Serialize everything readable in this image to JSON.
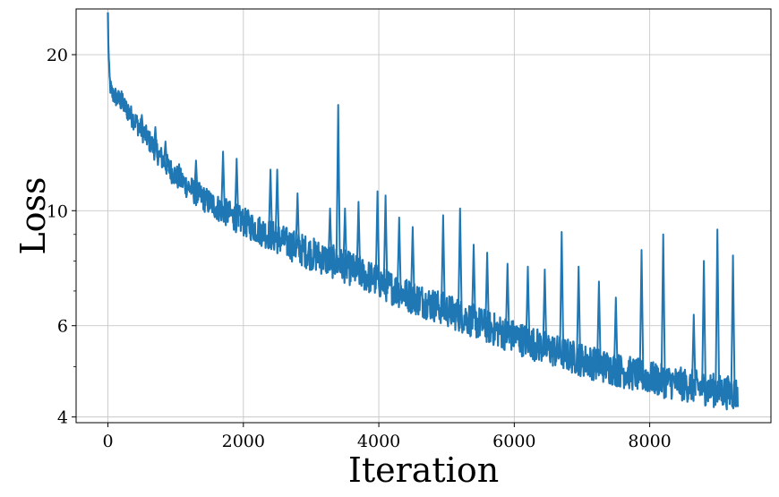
{
  "chart_data": {
    "type": "line",
    "title": "",
    "xlabel": "Iteration",
    "ylabel": "Loss",
    "xlim": [
      -470,
      9790
    ],
    "ylim": [
      3.9,
      24.5
    ],
    "yscale": "log",
    "grid": true,
    "x_ticks": [
      0,
      2000,
      4000,
      6000,
      8000
    ],
    "x_tick_labels": [
      "0",
      "2000",
      "4000",
      "6000",
      "8000"
    ],
    "y_ticks": [
      4,
      6,
      10,
      20
    ],
    "y_tick_labels": [
      "4",
      "6",
      "10",
      "20"
    ],
    "y_minor_ticks": [
      5,
      7,
      8,
      9
    ],
    "series": [
      {
        "color": "#1f77b4",
        "x": [
          0,
          10,
          20,
          40,
          60,
          100,
          150,
          200,
          300,
          400,
          500,
          600,
          700,
          800,
          900,
          1000,
          1200,
          1400,
          1600,
          1800,
          2000,
          2200,
          2400,
          2600,
          2800,
          3000,
          3200,
          3400,
          3600,
          3800,
          4000,
          4200,
          4400,
          4600,
          4800,
          5000,
          5200,
          5400,
          5600,
          5800,
          6000,
          6200,
          6400,
          6600,
          6800,
          7000,
          7200,
          7400,
          7600,
          7800,
          8000,
          8200,
          8400,
          8600,
          8800,
          9000,
          9200,
          9300
        ],
        "y": [
          23.5,
          19.5,
          17.8,
          17.0,
          16.6,
          16.4,
          16.2,
          16.0,
          15.3,
          14.7,
          14.1,
          13.5,
          12.9,
          12.4,
          11.9,
          11.5,
          10.9,
          10.4,
          10.0,
          9.65,
          9.35,
          9.05,
          8.8,
          8.55,
          8.3,
          8.1,
          7.9,
          7.75,
          7.55,
          7.35,
          7.15,
          6.95,
          6.75,
          6.6,
          6.45,
          6.3,
          6.15,
          6.0,
          5.85,
          5.72,
          5.6,
          5.48,
          5.36,
          5.25,
          5.15,
          5.05,
          4.96,
          4.88,
          4.8,
          4.73,
          4.66,
          4.6,
          4.55,
          4.5,
          4.45,
          4.4,
          4.36,
          4.34
        ],
        "spikes": [
          {
            "x": 110,
            "y": 17.2
          },
          {
            "x": 200,
            "y": 17.0
          },
          {
            "x": 300,
            "y": 16.0
          },
          {
            "x": 500,
            "y": 15.3
          },
          {
            "x": 700,
            "y": 14.5
          },
          {
            "x": 850,
            "y": 13.6
          },
          {
            "x": 1050,
            "y": 12.3
          },
          {
            "x": 1300,
            "y": 12.5
          },
          {
            "x": 1700,
            "y": 13.0
          },
          {
            "x": 1900,
            "y": 12.6
          },
          {
            "x": 2400,
            "y": 12.0
          },
          {
            "x": 2500,
            "y": 12.0
          },
          {
            "x": 2800,
            "y": 10.8
          },
          {
            "x": 3280,
            "y": 10.1
          },
          {
            "x": 3400,
            "y": 16.0
          },
          {
            "x": 3500,
            "y": 10.1
          },
          {
            "x": 3700,
            "y": 10.4
          },
          {
            "x": 3980,
            "y": 10.9
          },
          {
            "x": 4100,
            "y": 10.7
          },
          {
            "x": 4300,
            "y": 9.7
          },
          {
            "x": 4500,
            "y": 9.3
          },
          {
            "x": 4950,
            "y": 9.8
          },
          {
            "x": 5200,
            "y": 10.1
          },
          {
            "x": 5400,
            "y": 8.6
          },
          {
            "x": 5600,
            "y": 8.3
          },
          {
            "x": 5900,
            "y": 7.9
          },
          {
            "x": 6200,
            "y": 7.8
          },
          {
            "x": 6450,
            "y": 7.7
          },
          {
            "x": 6700,
            "y": 9.1
          },
          {
            "x": 6950,
            "y": 7.8
          },
          {
            "x": 7250,
            "y": 7.3
          },
          {
            "x": 7500,
            "y": 6.8
          },
          {
            "x": 7880,
            "y": 8.4
          },
          {
            "x": 8200,
            "y": 9.0
          },
          {
            "x": 8650,
            "y": 6.3
          },
          {
            "x": 8800,
            "y": 8.0
          },
          {
            "x": 9000,
            "y": 9.2
          },
          {
            "x": 9230,
            "y": 8.2
          }
        ]
      }
    ]
  }
}
